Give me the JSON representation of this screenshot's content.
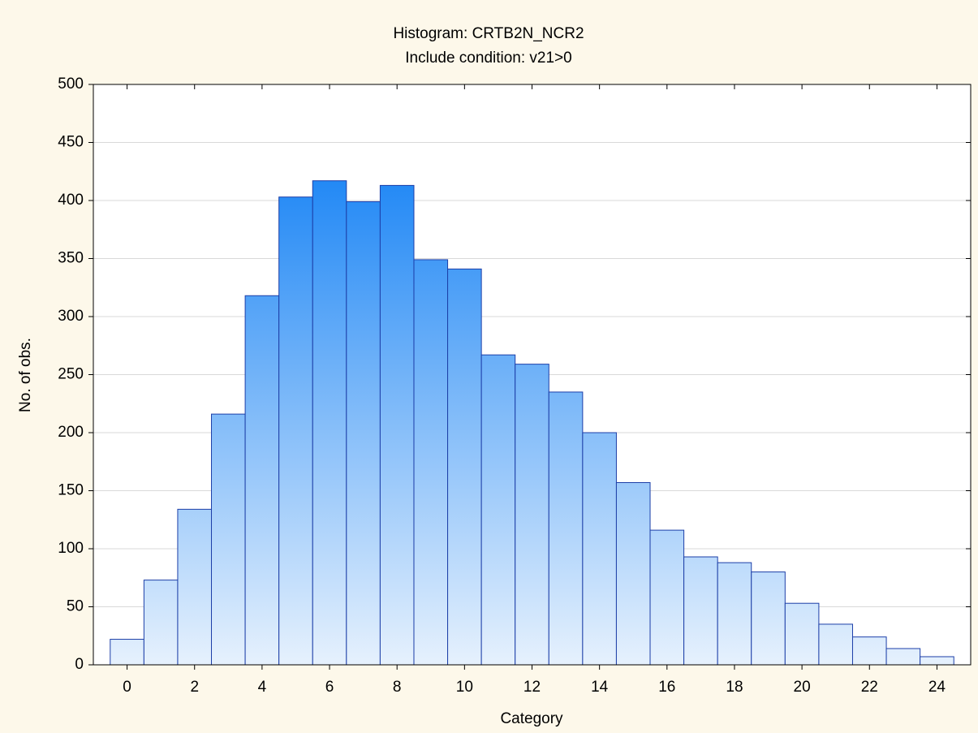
{
  "chart_data": {
    "type": "histogram",
    "title": "Histogram: CRTB2N_NCR2",
    "subtitle": "Include condition: v21>0",
    "xlabel": "Category",
    "ylabel": "No. of obs.",
    "bins": [
      -0.5,
      0.5,
      1.5,
      2.5,
      3.5,
      4.5,
      5.5,
      6.5,
      7.5,
      8.5,
      9.5,
      10.5,
      11.5,
      12.5,
      13.5,
      14.5,
      15.5,
      16.5,
      17.5,
      18.5,
      19.5,
      20.5,
      21.5,
      22.5,
      23.5,
      24.5
    ],
    "values": [
      22,
      73,
      134,
      216,
      318,
      403,
      417,
      399,
      413,
      349,
      341,
      267,
      259,
      235,
      200,
      157,
      116,
      93,
      88,
      80,
      53,
      35,
      24,
      14,
      7
    ],
    "color": "#1f87f5",
    "color_light": "#e6f1fd",
    "edge_color": "#1d3fa8",
    "xlim": [
      -1,
      25
    ],
    "xticks": [
      0,
      2,
      4,
      6,
      8,
      10,
      12,
      14,
      16,
      18,
      20,
      22,
      24
    ],
    "ylim": [
      0,
      500
    ],
    "yticks": [
      0,
      50,
      100,
      150,
      200,
      250,
      300,
      350,
      400,
      450,
      500
    ],
    "grid": true
  }
}
